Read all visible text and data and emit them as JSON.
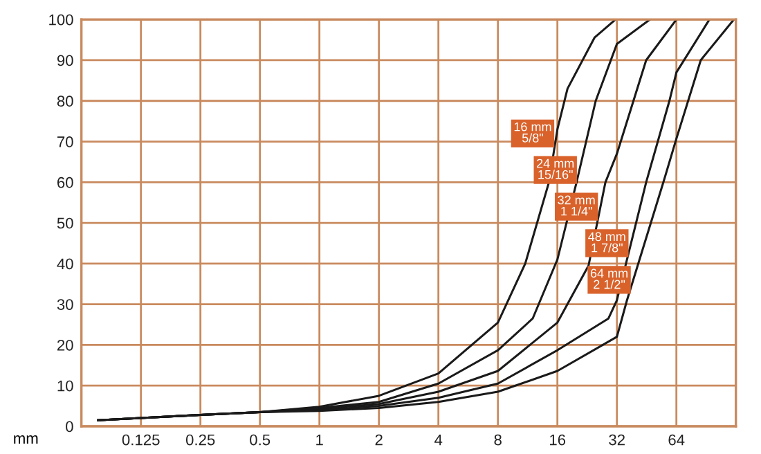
{
  "chart_data": {
    "type": "line",
    "xlabel": "mm",
    "log": "x",
    "xlim": [
      0.0625,
      128
    ],
    "xticks": [
      0.125,
      0.25,
      0.5,
      1,
      2,
      4,
      8,
      16,
      32,
      64
    ],
    "ylim": [
      0,
      100
    ],
    "yticks": [
      0,
      10,
      20,
      30,
      40,
      50,
      60,
      70,
      80,
      90,
      100
    ],
    "grid": true,
    "legend": false,
    "marker": "none",
    "line_style": "solid",
    "series": [
      {
        "name": "16 mm\n5/8\"",
        "color": "#1a1a1a",
        "x": [
          0.076,
          0.25,
          0.5,
          1,
          2,
          4,
          8,
          11,
          14.5,
          16,
          18,
          24.7,
          31.5
        ],
        "values": [
          1.5,
          2.8,
          3.5,
          4.8,
          7.5,
          13,
          25.5,
          40,
          60,
          73,
          83,
          95.6,
          100
        ]
      },
      {
        "name": "24 mm\n15/16\"",
        "color": "#1a1a1a",
        "x": [
          0.076,
          0.25,
          0.5,
          1,
          2,
          4,
          8,
          12,
          16,
          20,
          25,
          32,
          47
        ],
        "values": [
          1.5,
          2.8,
          3.5,
          4.5,
          6,
          10.5,
          18.7,
          26.5,
          41,
          60,
          80,
          94,
          100
        ]
      },
      {
        "name": "32 mm\n1 1/4\"",
        "color": "#1a1a1a",
        "x": [
          0.076,
          0.25,
          0.5,
          1,
          2,
          4,
          8,
          16,
          23,
          28,
          32,
          45,
          64
        ],
        "values": [
          1.5,
          2.8,
          3.5,
          4.3,
          5.5,
          8.5,
          13.6,
          25.5,
          39.5,
          60,
          67,
          90,
          100
        ]
      },
      {
        "name": "48 mm\n1 7/8\"",
        "color": "#1a1a1a",
        "x": [
          0.076,
          0.25,
          0.5,
          1,
          2,
          4,
          8,
          16,
          29,
          32,
          45,
          59,
          64,
          94
        ],
        "values": [
          1.5,
          2.8,
          3.5,
          4,
          5,
          7,
          10.5,
          18.7,
          26.5,
          31,
          60,
          80,
          87,
          100
        ]
      },
      {
        "name": "64 mm\n2 1/2\"",
        "color": "#1a1a1a",
        "x": [
          0.076,
          0.25,
          0.5,
          1,
          2,
          4,
          8,
          16,
          32,
          36,
          55,
          64,
          85,
          125
        ],
        "values": [
          1.5,
          2.8,
          3.5,
          3.8,
          4.5,
          6,
          8.5,
          13.6,
          22,
          31,
          60,
          70.7,
          90,
          100
        ]
      }
    ]
  }
}
